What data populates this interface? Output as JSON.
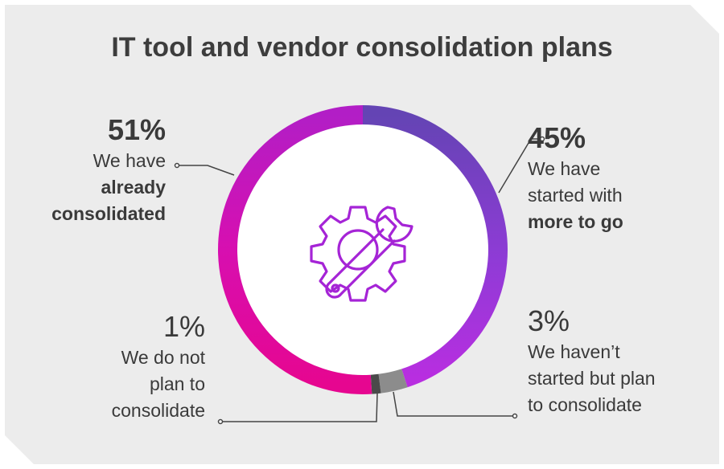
{
  "title": "IT tool and vendor consolidation plans",
  "chart_data": {
    "type": "pie",
    "title": "IT tool and vendor consolidation plans",
    "donut": true,
    "slices": [
      {
        "value": 45,
        "label": "45%",
        "description": [
          "We have",
          "started with",
          "more to go"
        ],
        "color": "#8a3fd0"
      },
      {
        "value": 3,
        "label": "3%",
        "description": [
          "We haven’t",
          "started but plan",
          "to consolidate"
        ],
        "color": "#8c8c8c"
      },
      {
        "value": 1,
        "label": "1%",
        "description": [
          "We do not",
          "plan to",
          "consolidate"
        ],
        "color": "#4a4a4a"
      },
      {
        "value": 51,
        "label": "51%",
        "description": [
          "We have",
          "already",
          "consolidated"
        ],
        "color": "#d60fa8"
      }
    ],
    "gradient_colors": {
      "top_right": "#6b44b8",
      "bottom_right": "#b02fe0",
      "bottom_left": "#e6058f",
      "top_left": "#b81fc8"
    },
    "center_icon": "gear-wrench-icon",
    "center_icon_color": "#a020d8"
  }
}
